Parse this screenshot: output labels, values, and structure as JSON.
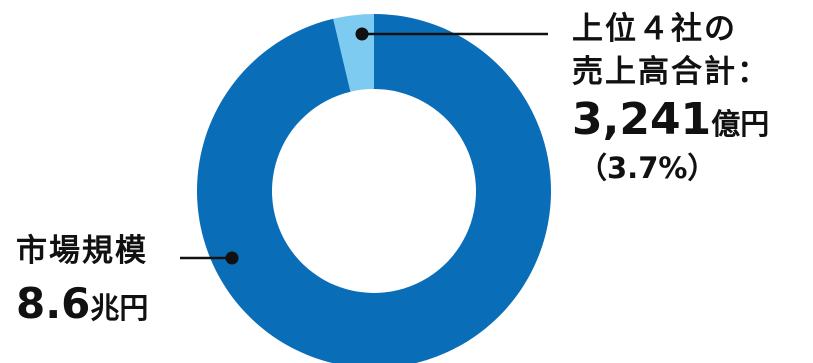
{
  "chart_data": {
    "type": "pie",
    "variant": "donut",
    "slices": [
      {
        "name": "市場規模",
        "value": 96.3,
        "color": "#0A6DB8"
      },
      {
        "name": "上位4社の売上高合計",
        "value": 3.7,
        "color": "#7DCBF0"
      }
    ],
    "annotations": {
      "top4": {
        "line1": "上位４社の",
        "line2": "売上高合計：",
        "value": "3,241",
        "unit": "億円",
        "percent": "（3.7%）"
      },
      "market": {
        "line1": "市場規模",
        "value": "8.6",
        "unit": "兆円"
      }
    }
  }
}
